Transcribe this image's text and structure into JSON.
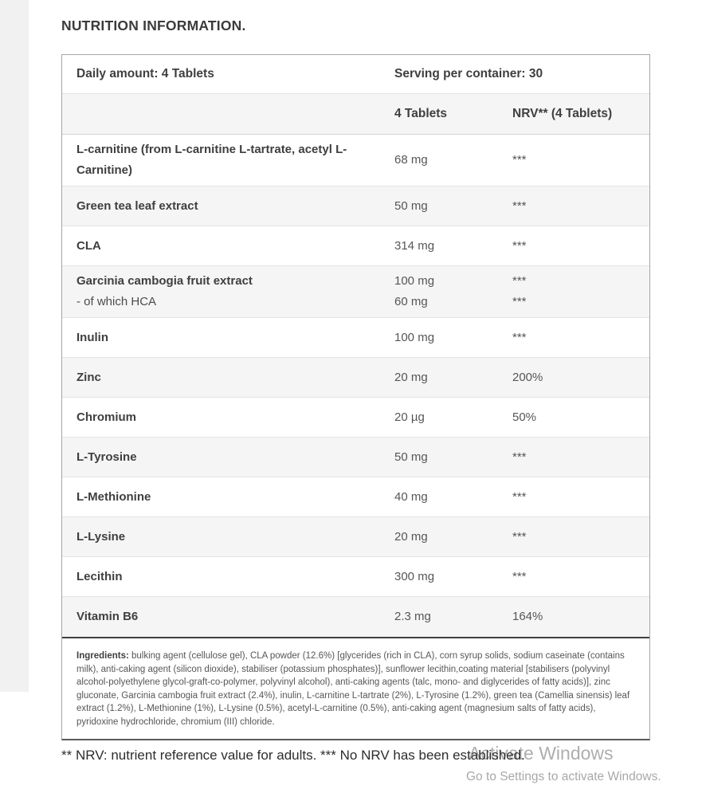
{
  "page": {
    "title": "NUTRITION INFORMATION."
  },
  "table": {
    "header": {
      "daily_amount": "Daily amount: 4 Tablets",
      "serving": "Serving per container: 30"
    },
    "columns": {
      "amount": "4 Tablets",
      "nrv": "NRV** (4 Tablets)"
    },
    "rows": [
      {
        "name": "L-carnitine (from L-carnitine L-tartrate, acetyl L-Carnitine)",
        "amount": "68 mg",
        "nrv": "***"
      },
      {
        "name": "Green tea leaf extract",
        "amount": "50 mg",
        "nrv": "***"
      },
      {
        "name": "CLA",
        "amount": "314 mg",
        "nrv": "***"
      },
      {
        "name": "Garcinia cambogia fruit extract",
        "sub": "- of which HCA",
        "amount": "100 mg",
        "sub_amount": "60 mg",
        "nrv": "***",
        "sub_nrv": "***"
      },
      {
        "name": "Inulin",
        "amount": "100 mg",
        "nrv": "***"
      },
      {
        "name": "Zinc",
        "amount": "20 mg",
        "nrv": "200%"
      },
      {
        "name": "Chromium",
        "amount": "20 µg",
        "nrv": "50%"
      },
      {
        "name": "L-Tyrosine",
        "amount": "50 mg",
        "nrv": "***"
      },
      {
        "name": "L-Methionine",
        "amount": "40 mg",
        "nrv": "***"
      },
      {
        "name": "L-Lysine",
        "amount": "20 mg",
        "nrv": "***"
      },
      {
        "name": "Lecithin",
        "amount": "300 mg",
        "nrv": "***"
      },
      {
        "name": "Vitamin B6",
        "amount": "2.3 mg",
        "nrv": "164%"
      }
    ],
    "ingredients": {
      "label": "Ingredients:",
      "text": " bulking agent (cellulose gel), CLA powder (12.6%) [glycerides (rich in CLA), corn syrup solids, sodium caseinate (contains milk), anti-caking agent (silicon dioxide), stabiliser (potassium phosphates)], sunflower lecithin,coating material [stabilisers (polyvinyl alcohol-polyethylene glycol-graft-co-polymer, polyvinyl alcohol), anti-caking agents (talc, mono- and diglycerides of fatty acids)], zinc gluconate, Garcinia cambogia fruit extract (2.4%), inulin, L-carnitine L-tartrate (2%), L-Tyrosine (1.2%), green tea (Camellia sinensis) leaf extract (1.2%), L-Methionine (1%), L-Lysine (0.5%), acetyl-L-carnitine (0.5%), anti-caking agent (magnesium salts of fatty acids), pyridoxine hydrochloride, chromium (III) chloride."
    }
  },
  "footer": {
    "note": "** NRV: nutrient reference value for adults. *** No NRV has been established."
  },
  "watermark": {
    "line1": "Activate Windows",
    "line2": "Go to Settings to activate Windows."
  },
  "colors": {
    "row_alt_bg": "#f5f5f5",
    "row_border": "#e3e3e3",
    "outer_border": "#a6a6a6",
    "dark_separator": "#3f3f3f",
    "text_dark": "#3f3f3f",
    "text_value": "#565656"
  }
}
